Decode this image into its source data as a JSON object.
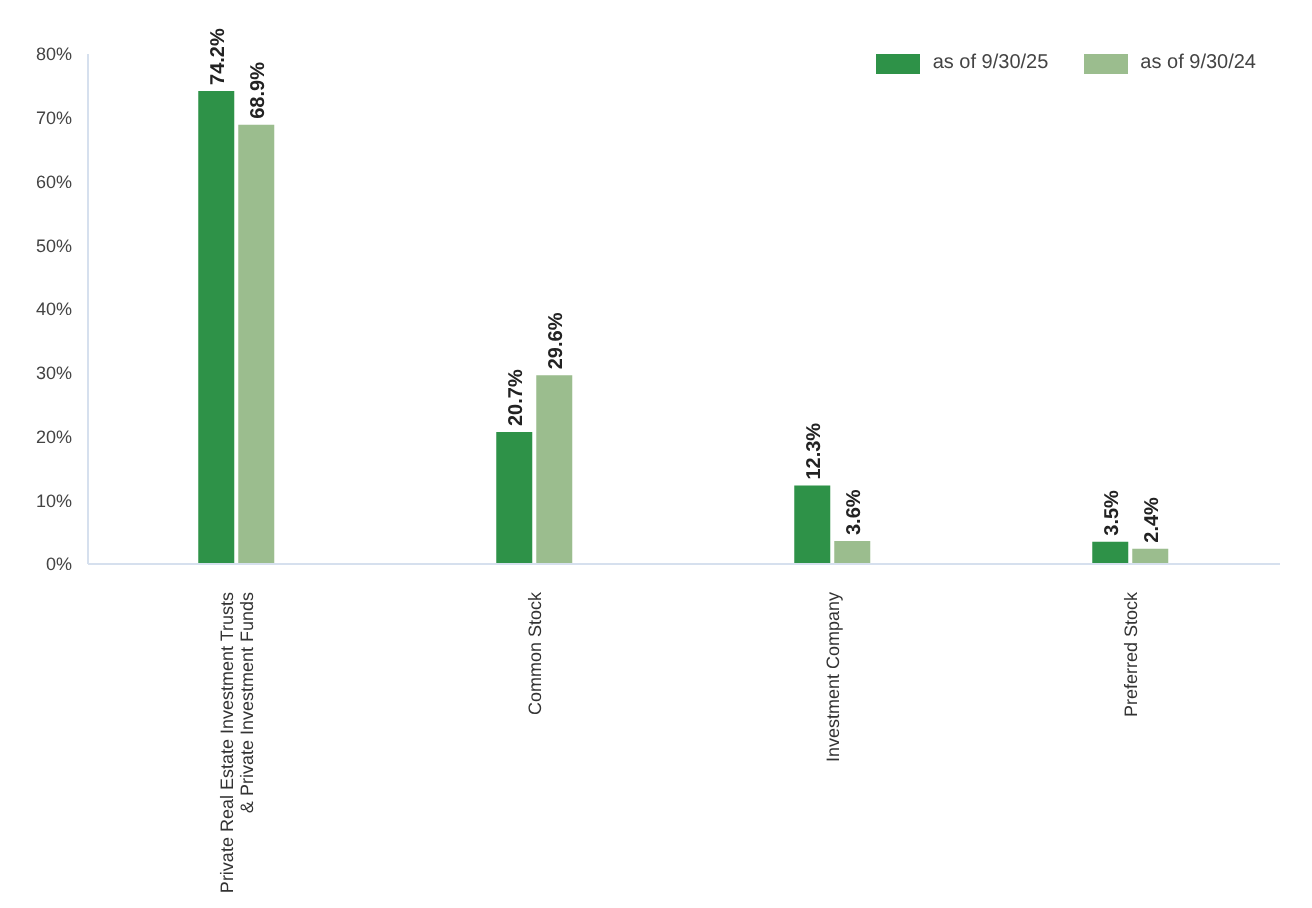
{
  "chart_data": {
    "type": "bar",
    "categories": [
      "Private Real Estate Investment Trusts & Private Investment Funds",
      "Common Stock",
      "Investment Company",
      "Preferred Stock"
    ],
    "series": [
      {
        "name": "as of 9/30/25",
        "color": "#2e9248",
        "values": [
          74.2,
          20.7,
          12.3,
          3.5
        ],
        "value_labels": [
          "74.2%",
          "20.7%",
          "12.3%",
          "3.5%"
        ]
      },
      {
        "name": "as of 9/30/24",
        "color": "#9bbd8e",
        "values": [
          68.9,
          29.6,
          3.6,
          2.4
        ],
        "value_labels": [
          "68.9%",
          "29.6%",
          "3.6%",
          "2.4%"
        ]
      }
    ],
    "ylim": [
      0,
      80
    ],
    "yticks": [
      {
        "value": 0,
        "label": "0%"
      },
      {
        "value": 10,
        "label": "10%"
      },
      {
        "value": 20,
        "label": "20%"
      },
      {
        "value": 30,
        "label": "30%"
      },
      {
        "value": 40,
        "label": "40%"
      },
      {
        "value": 50,
        "label": "50%"
      },
      {
        "value": 60,
        "label": "60%"
      },
      {
        "value": 70,
        "label": "70%"
      },
      {
        "value": 80,
        "label": "80%"
      }
    ],
    "grid": false,
    "legend": "top right"
  }
}
